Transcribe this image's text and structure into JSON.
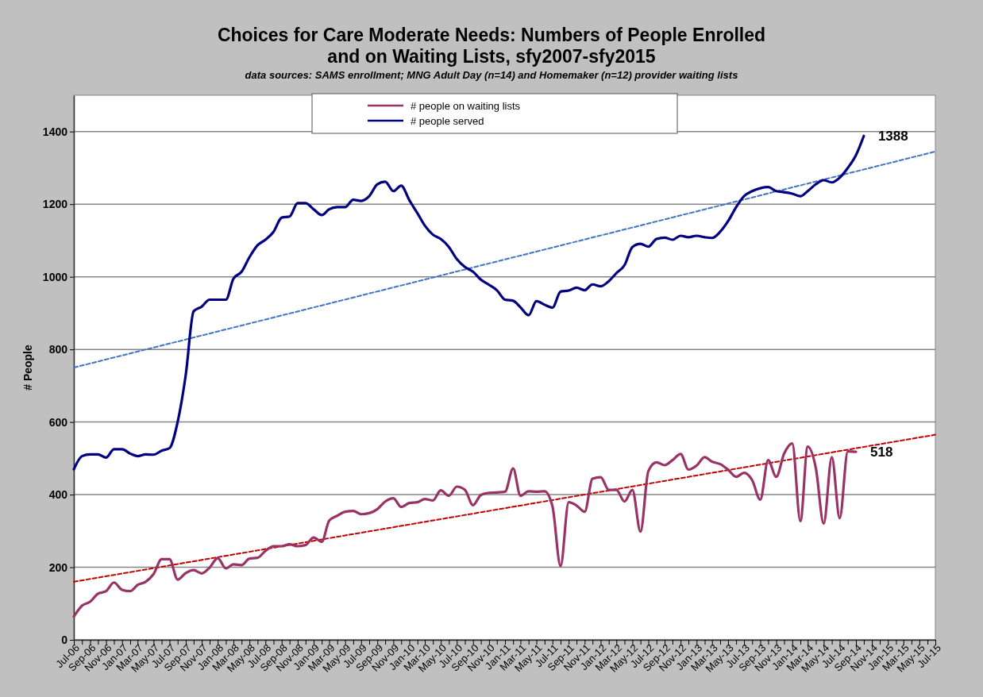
{
  "chart_data": {
    "type": "line",
    "title": "Choices for Care Moderate Needs: Numbers of People Enrolled and on Waiting Lists, sfy2007-sfy2015",
    "subtitle": "data sources: SAMS enrollment; MNG Adult Day (n=14) and Homemaker (n=12) provider waiting lists",
    "ylabel": "# People",
    "x": [
      "2006-07",
      "2006-08",
      "2006-09",
      "2006-10",
      "2006-11",
      "2006-12",
      "2007-01",
      "2007-02",
      "2007-03",
      "2007-04",
      "2007-05",
      "2007-06",
      "2007-07",
      "2007-08",
      "2007-09",
      "2007-10",
      "2007-11",
      "2007-12",
      "2008-01",
      "2008-02",
      "2008-03",
      "2008-04",
      "2008-05",
      "2008-06",
      "2008-07",
      "2008-08",
      "2008-09",
      "2008-10",
      "2008-11",
      "2008-12",
      "2009-01",
      "2009-02",
      "2009-03",
      "2009-04",
      "2009-05",
      "2009-06",
      "2009-07",
      "2009-08",
      "2009-09",
      "2009-10",
      "2009-11",
      "2009-12",
      "2010-01",
      "2010-02",
      "2010-03",
      "2010-04",
      "2010-05",
      "2010-06",
      "2010-07",
      "2010-08",
      "2010-09",
      "2010-10",
      "2010-11",
      "2010-12",
      "2011-01",
      "2011-02",
      "2011-03",
      "2011-04",
      "2011-05",
      "2011-06",
      "2011-07",
      "2011-08",
      "2011-09",
      "2011-10",
      "2011-11",
      "2011-12",
      "2012-01",
      "2012-02",
      "2012-03",
      "2012-04",
      "2012-05",
      "2012-06",
      "2012-07",
      "2012-08",
      "2012-09",
      "2012-10",
      "2012-11",
      "2012-12",
      "2013-01",
      "2013-02",
      "2013-03",
      "2013-04",
      "2013-05",
      "2013-06",
      "2013-07",
      "2013-08",
      "2013-09",
      "2013-10",
      "2013-11",
      "2013-12",
      "2014-01",
      "2014-02",
      "2014-03",
      "2014-04",
      "2014-05",
      "2014-06",
      "2014-07",
      "2014-08",
      "2014-09",
      "2014-10"
    ],
    "series": [
      {
        "name": "# people on waiting lists",
        "color": "#993366",
        "values": [
          64,
          94,
          105,
          127,
          134,
          158,
          138,
          134,
          151,
          160,
          181,
          222,
          222,
          166,
          184,
          192,
          183,
          199,
          225,
          197,
          208,
          206,
          224,
          226,
          245,
          258,
          258,
          263,
          258,
          261,
          282,
          270,
          328,
          342,
          353,
          355,
          346,
          349,
          360,
          381,
          390,
          366,
          377,
          379,
          388,
          384,
          412,
          397,
          422,
          413,
          371,
          399,
          405,
          406,
          408,
          472,
          397,
          409,
          408,
          409,
          368,
          203,
          379,
          370,
          353,
          444,
          448,
          413,
          413,
          381,
          413,
          298,
          465,
          489,
          481,
          495,
          512,
          469,
          480,
          503,
          491,
          484,
          469,
          449,
          460,
          440,
          386,
          495,
          449,
          513,
          541,
          327,
          532,
          473,
          320,
          503,
          335,
          519,
          518,
          null
        ]
      },
      {
        "name": "# people served",
        "color": "#000080",
        "values": [
          470,
          506,
          511,
          511,
          502,
          525,
          525,
          513,
          506,
          511,
          510,
          521,
          528,
          600,
          730,
          905,
          918,
          937,
          937,
          937,
          995,
          1014,
          1054,
          1087,
          1102,
          1124,
          1163,
          1166,
          1203,
          1203,
          1186,
          1170,
          1186,
          1192,
          1192,
          1212,
          1209,
          1222,
          1255,
          1262,
          1236,
          1251,
          1211,
          1175,
          1141,
          1116,
          1104,
          1082,
          1049,
          1027,
          1014,
          992,
          978,
          963,
          937,
          934,
          916,
          894,
          933,
          923,
          915,
          959,
          962,
          970,
          963,
          979,
          974,
          988,
          1010,
          1032,
          1082,
          1091,
          1083,
          1104,
          1108,
          1102,
          1113,
          1109,
          1113,
          1109,
          1107,
          1124,
          1153,
          1192,
          1222,
          1236,
          1244,
          1247,
          1236,
          1233,
          1229,
          1222,
          1236,
          1255,
          1266,
          1260,
          1273,
          1300,
          1335,
          1388
        ]
      },
      {
        "type": "line",
        "color": "#4472c4",
        "line_style": "dashed",
        "x": [
          "2006-07",
          "2015-07"
        ],
        "values": [
          750,
          1345
        ]
      },
      {
        "type": "line",
        "color": "#c00000",
        "line_style": "dashed",
        "x": [
          "2006-07",
          "2015-07"
        ],
        "values": [
          160,
          565
        ]
      }
    ],
    "annotations": [
      {
        "text": "1388",
        "x": "2014-10",
        "y": 1388
      },
      {
        "text": "518",
        "x": "2014-09",
        "y": 518
      }
    ],
    "xlim": [
      "2006-07",
      "2015-07"
    ],
    "xticks": [
      {
        "value": "2006-07",
        "label": "Jul-06"
      },
      {
        "value": "2006-08",
        "label": null
      },
      {
        "value": "2006-09",
        "label": "Sep-06"
      },
      {
        "value": "2006-10",
        "label": null
      },
      {
        "value": "2006-11",
        "label": "Nov-06"
      },
      {
        "value": "2006-12",
        "label": null
      },
      {
        "value": "2007-01",
        "label": "Jan-07"
      },
      {
        "value": "2007-02",
        "label": null
      },
      {
        "value": "2007-03",
        "label": "Mar-07"
      },
      {
        "value": "2007-04",
        "label": null
      },
      {
        "value": "2007-05",
        "label": "May-07"
      },
      {
        "value": "2007-06",
        "label": null
      },
      {
        "value": "2007-07",
        "label": "Jul-07"
      },
      {
        "value": "2007-08",
        "label": null
      },
      {
        "value": "2007-09",
        "label": "Sep-07"
      },
      {
        "value": "2007-10",
        "label": null
      },
      {
        "value": "2007-11",
        "label": "Nov-07"
      },
      {
        "value": "2007-12",
        "label": null
      },
      {
        "value": "2008-01",
        "label": "Jan-08"
      },
      {
        "value": "2008-02",
        "label": null
      },
      {
        "value": "2008-03",
        "label": "Mar-08"
      },
      {
        "value": "2008-04",
        "label": null
      },
      {
        "value": "2008-05",
        "label": "May-08"
      },
      {
        "value": "2008-06",
        "label": null
      },
      {
        "value": "2008-07",
        "label": "Jul-08"
      },
      {
        "value": "2008-08",
        "label": null
      },
      {
        "value": "2008-09",
        "label": "Sep-08"
      },
      {
        "value": "2008-10",
        "label": null
      },
      {
        "value": "2008-11",
        "label": "Nov-08"
      },
      {
        "value": "2008-12",
        "label": null
      },
      {
        "value": "2009-01",
        "label": "Jan-09"
      },
      {
        "value": "2009-02",
        "label": null
      },
      {
        "value": "2009-03",
        "label": "Mar-09"
      },
      {
        "value": "2009-04",
        "label": null
      },
      {
        "value": "2009-05",
        "label": "May-09"
      },
      {
        "value": "2009-06",
        "label": null
      },
      {
        "value": "2009-07",
        "label": "Jul-09"
      },
      {
        "value": "2009-08",
        "label": null
      },
      {
        "value": "2009-09",
        "label": "Sep-09"
      },
      {
        "value": "2009-10",
        "label": null
      },
      {
        "value": "2009-11",
        "label": "Nov-09"
      },
      {
        "value": "2009-12",
        "label": null
      },
      {
        "value": "2010-01",
        "label": "Jan-10"
      },
      {
        "value": "2010-02",
        "label": null
      },
      {
        "value": "2010-03",
        "label": "Mar-10"
      },
      {
        "value": "2010-04",
        "label": null
      },
      {
        "value": "2010-05",
        "label": "May-10"
      },
      {
        "value": "2010-06",
        "label": null
      },
      {
        "value": "2010-07",
        "label": "Jul-10"
      },
      {
        "value": "2010-08",
        "label": null
      },
      {
        "value": "2010-09",
        "label": "Sep-10"
      },
      {
        "value": "2010-10",
        "label": null
      },
      {
        "value": "2010-11",
        "label": "Nov-10"
      },
      {
        "value": "2010-12",
        "label": null
      },
      {
        "value": "2011-01",
        "label": "Jan-11"
      },
      {
        "value": "2011-02",
        "label": null
      },
      {
        "value": "2011-03",
        "label": "Mar-11"
      },
      {
        "value": "2011-04",
        "label": null
      },
      {
        "value": "2011-05",
        "label": "May-11"
      },
      {
        "value": "2011-06",
        "label": null
      },
      {
        "value": "2011-07",
        "label": "Jul-11"
      },
      {
        "value": "2011-08",
        "label": null
      },
      {
        "value": "2011-09",
        "label": "Sep-11"
      },
      {
        "value": "2011-10",
        "label": null
      },
      {
        "value": "2011-11",
        "label": "Nov-11"
      },
      {
        "value": "2011-12",
        "label": null
      },
      {
        "value": "2012-01",
        "label": "Jan-12"
      },
      {
        "value": "2012-02",
        "label": null
      },
      {
        "value": "2012-03",
        "label": "Mar-12"
      },
      {
        "value": "2012-04",
        "label": null
      },
      {
        "value": "2012-05",
        "label": "May-12"
      },
      {
        "value": "2012-06",
        "label": null
      },
      {
        "value": "2012-07",
        "label": "Jul-12"
      },
      {
        "value": "2012-08",
        "label": null
      },
      {
        "value": "2012-09",
        "label": "Sep-12"
      },
      {
        "value": "2012-10",
        "label": null
      },
      {
        "value": "2012-11",
        "label": "Nov-12"
      },
      {
        "value": "2012-12",
        "label": null
      },
      {
        "value": "2013-01",
        "label": "Jan-13"
      },
      {
        "value": "2013-02",
        "label": null
      },
      {
        "value": "2013-03",
        "label": "Mar-13"
      },
      {
        "value": "2013-04",
        "label": null
      },
      {
        "value": "2013-05",
        "label": "May-13"
      },
      {
        "value": "2013-06",
        "label": null
      },
      {
        "value": "2013-07",
        "label": "Jul-13"
      },
      {
        "value": "2013-08",
        "label": null
      },
      {
        "value": "2013-09",
        "label": "Sep-13"
      },
      {
        "value": "2013-10",
        "label": null
      },
      {
        "value": "2013-11",
        "label": "Nov-13"
      },
      {
        "value": "2013-12",
        "label": null
      },
      {
        "value": "2014-01",
        "label": "Jan-14"
      },
      {
        "value": "2014-02",
        "label": null
      },
      {
        "value": "2014-03",
        "label": "Mar-14"
      },
      {
        "value": "2014-04",
        "label": null
      },
      {
        "value": "2014-05",
        "label": "May-14"
      },
      {
        "value": "2014-06",
        "label": null
      },
      {
        "value": "2014-07",
        "label": "Jul-14"
      },
      {
        "value": "2014-08",
        "label": null
      },
      {
        "value": "2014-09",
        "label": "Sep-14"
      },
      {
        "value": "2014-10",
        "label": null
      },
      {
        "value": "2014-11",
        "label": "Nov-14"
      },
      {
        "value": "2014-12",
        "label": null
      },
      {
        "value": "2015-01",
        "label": "Jan-15"
      },
      {
        "value": "2015-02",
        "label": null
      },
      {
        "value": "2015-03",
        "label": "Mar-15"
      },
      {
        "value": "2015-04",
        "label": null
      },
      {
        "value": "2015-05",
        "label": "May-15"
      },
      {
        "value": "2015-06",
        "label": null
      },
      {
        "value": "2015-07",
        "label": "Jul-15"
      }
    ],
    "ylim": [
      0,
      1500
    ],
    "yticks": [
      0,
      200,
      400,
      600,
      800,
      1000,
      1200,
      1400
    ],
    "grid": "y",
    "legend": "top",
    "line_style": "solid"
  }
}
